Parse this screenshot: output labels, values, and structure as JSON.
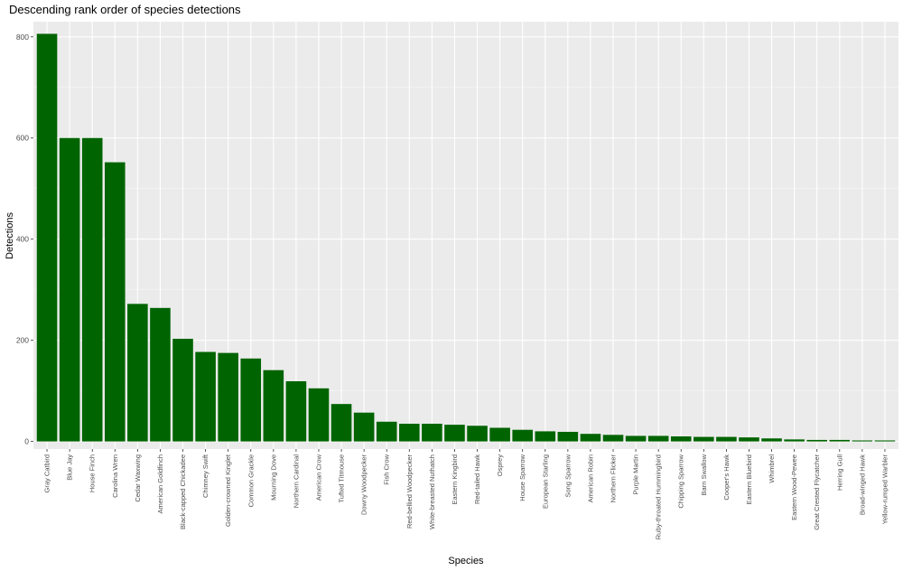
{
  "chart_data": {
    "type": "bar",
    "title": "Descending rank order of species detections",
    "xlabel": "Species",
    "ylabel": "Detections",
    "ylim": [
      -15,
      830
    ],
    "yticks": [
      0,
      200,
      400,
      600,
      800
    ],
    "grid": true,
    "legend": "none",
    "colors": {
      "bar": "#006400",
      "panel": "#ebebeb",
      "grid_major": "#ffffff",
      "tick_text": "#4d4d4d"
    },
    "categories": [
      "Gray Catbird",
      "Blue Jay",
      "House Finch",
      "Carolina Wren",
      "Cedar Waxwing",
      "American Goldfinch",
      "Black-capped Chickadee",
      "Chimney Swift",
      "Golden-crowned Kinglet",
      "Common Grackle",
      "Mourning Dove",
      "Northern Cardinal",
      "American Crow",
      "Tufted Titmouse",
      "Downy Woodpecker",
      "Fish Crow",
      "Red-bellied Woodpecker",
      "White-breasted Nuthatch",
      "Eastern Kingbird",
      "Red-tailed Hawk",
      "Osprey",
      "House Sparrow",
      "European Starling",
      "Song Sparrow",
      "American Robin",
      "Northern Flicker",
      "Purple Martin",
      "Ruby-throated Hummingbird",
      "Chipping Sparrow",
      "Barn Swallow",
      "Cooper's Hawk",
      "Eastern Bluebird",
      "Whimbrel",
      "Eastern Wood-Pewee",
      "Great Crested Flycatcher",
      "Herring Gull",
      "Broad-winged Hawk",
      "Yellow-rumped Warbler"
    ],
    "values": [
      806,
      600,
      600,
      552,
      272,
      264,
      203,
      177,
      175,
      164,
      141,
      119,
      105,
      74,
      57,
      39,
      35,
      35,
      33,
      31,
      27,
      23,
      20,
      19,
      15,
      13,
      11,
      11,
      10,
      9,
      9,
      8,
      6,
      4,
      3,
      3,
      2,
      2
    ]
  }
}
